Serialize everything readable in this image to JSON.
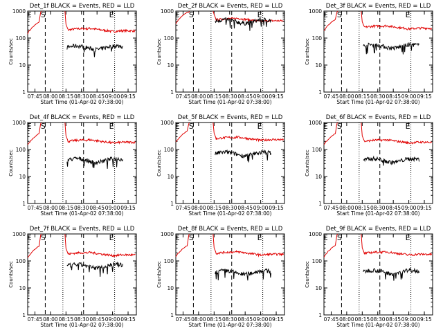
{
  "colors": {
    "events": "#000000",
    "lld": "#e00000",
    "axis": "#000000"
  },
  "chart_data": [
    {
      "type": "line",
      "title": "Det_1f BLACK = Events, RED = LLD",
      "xlabel": "Start Time (01-Apr-02 07:38:00)",
      "ylabel": "Counts/sec",
      "x_ticks": [
        "07:45",
        "08:00",
        "08:15",
        "08:30",
        "08:45",
        "09:00",
        "09:15"
      ],
      "y_scale": "log",
      "ylim": [
        1,
        1000
      ],
      "y_ticks": [
        "1",
        "10",
        "100",
        "1000"
      ],
      "marker_labels": [
        "E",
        "S",
        "E"
      ],
      "lld_level": 200,
      "events_level": 45,
      "events_present": true
    },
    {
      "type": "line",
      "title": "Det_2f BLACK = Events, RED = LLD",
      "xlabel": "Start Time (01-Apr-02 07:38:00)",
      "ylabel": "Counts/sec",
      "x_ticks": [
        "07:45",
        "08:00",
        "08:15",
        "08:30",
        "08:45",
        "09:00",
        "09:15"
      ],
      "y_scale": "log",
      "ylim": [
        1,
        1000
      ],
      "y_ticks": [
        "1",
        "10",
        "100",
        "1000"
      ],
      "marker_labels": [
        "E",
        "S",
        "E"
      ],
      "lld_level": 470,
      "events_level": 420,
      "events_present": true
    },
    {
      "type": "line",
      "title": "Det_3f BLACK = Events, RED = LLD",
      "xlabel": "Start Time (01-Apr-02 07:38:00)",
      "ylabel": "Counts/sec",
      "x_ticks": [
        "07:45",
        "08:00",
        "08:15",
        "08:30",
        "08:45",
        "09:00",
        "09:15"
      ],
      "y_scale": "log",
      "ylim": [
        1,
        1000
      ],
      "y_ticks": [
        "1",
        "10",
        "100",
        "1000"
      ],
      "marker_labels": [
        "E",
        "S",
        "E"
      ],
      "lld_level": 250,
      "events_level": 50,
      "events_present": true
    },
    {
      "type": "line",
      "title": "Det_4f BLACK = Events, RED = LLD",
      "xlabel": "Start Time (01-Apr-02 07:38:00)",
      "ylabel": "Counts/sec",
      "x_ticks": [
        "07:45",
        "08:00",
        "08:15",
        "08:30",
        "08:45",
        "09:00",
        "09:15"
      ],
      "y_scale": "log",
      "ylim": [
        1,
        1000
      ],
      "y_ticks": [
        "1",
        "10",
        "100",
        "1000"
      ],
      "marker_labels": [
        "E",
        "S",
        "E"
      ],
      "lld_level": 200,
      "events_level": 40,
      "events_present": true
    },
    {
      "type": "line",
      "title": "Det_5f BLACK = Events, RED = LLD",
      "xlabel": "Start Time (01-Apr-02 07:38:00)",
      "ylabel": "Counts/sec",
      "x_ticks": [
        "07:45",
        "08:00",
        "08:15",
        "08:30",
        "08:45",
        "09:00",
        "09:15"
      ],
      "y_scale": "log",
      "ylim": [
        1,
        1000
      ],
      "y_ticks": [
        "1",
        "10",
        "100",
        "1000"
      ],
      "marker_labels": [
        "E",
        "S",
        "E"
      ],
      "lld_level": 250,
      "events_level": 70,
      "events_present": true
    },
    {
      "type": "line",
      "title": "Det_6f BLACK = Events, RED = LLD",
      "xlabel": "Start Time (01-Apr-02 07:38:00)",
      "ylabel": "Counts/sec",
      "x_ticks": [
        "07:45",
        "08:00",
        "08:15",
        "08:30",
        "08:45",
        "09:00",
        "09:15"
      ],
      "y_scale": "log",
      "ylim": [
        1,
        1000
      ],
      "y_ticks": [
        "1",
        "10",
        "100",
        "1000"
      ],
      "marker_labels": [
        "E",
        "S",
        "E"
      ],
      "lld_level": 200,
      "events_level": 40,
      "events_present": true
    },
    {
      "type": "line",
      "title": "Det_7f BLACK = Events, RED = LLD",
      "xlabel": "Start Time (01-Apr-02 07:38:00)",
      "ylabel": "Counts/sec",
      "x_ticks": [
        "07:45",
        "08:00",
        "08:15",
        "08:30",
        "08:45",
        "09:00",
        "09:15"
      ],
      "y_scale": "log",
      "ylim": [
        1,
        1000
      ],
      "y_ticks": [
        "1",
        "10",
        "100",
        "1000"
      ],
      "marker_labels": [
        "E",
        "S",
        "E"
      ],
      "lld_level": 180,
      "events_level": 65,
      "events_present": true
    },
    {
      "type": "line",
      "title": "Det_8f BLACK = Events, RED = LLD",
      "xlabel": "Start Time (01-Apr-02 07:38:00)",
      "ylabel": "Counts/sec",
      "x_ticks": [
        "07:45",
        "08:00",
        "08:15",
        "08:30",
        "08:45",
        "09:00",
        "09:15"
      ],
      "y_scale": "log",
      "ylim": [
        1,
        1000
      ],
      "y_ticks": [
        "1",
        "10",
        "100",
        "1000"
      ],
      "marker_labels": [
        "E",
        "S",
        "E"
      ],
      "lld_level": 190,
      "events_level": 38,
      "events_present": true
    },
    {
      "type": "line",
      "title": "Det_9f BLACK = Events, RED = LLD",
      "xlabel": "Start Time (01-Apr-02 07:38:00)",
      "ylabel": "Counts/sec",
      "x_ticks": [
        "07:45",
        "08:00",
        "08:15",
        "08:30",
        "08:45",
        "09:00",
        "09:15"
      ],
      "y_scale": "log",
      "ylim": [
        1,
        1000
      ],
      "y_ticks": [
        "1",
        "10",
        "100",
        "1000"
      ],
      "marker_labels": [
        "E",
        "S",
        "E"
      ],
      "lld_level": 190,
      "events_level": 40,
      "events_present": true
    }
  ]
}
